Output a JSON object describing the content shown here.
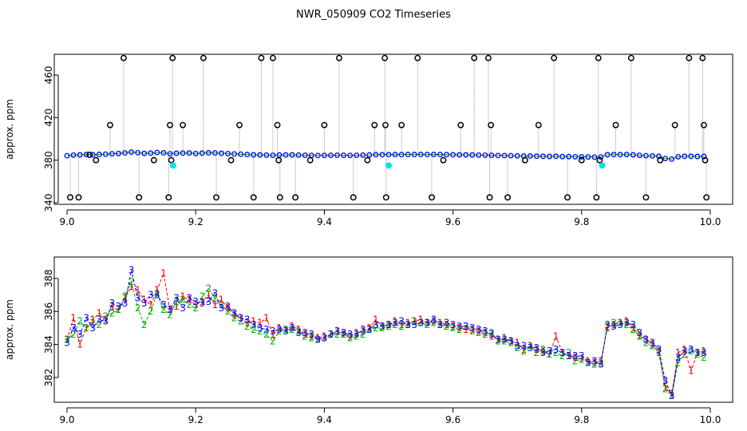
{
  "chart_data": [
    {
      "type": "scatter",
      "title": "NWR_050909  CO2 Timeseries",
      "xlabel": "",
      "ylabel": "approx. ppm",
      "xlim": [
        9.0,
        10.0
      ],
      "ylim": [
        340,
        478
      ],
      "x_ticks": [
        "9.0",
        "9.2",
        "9.4",
        "9.6",
        "9.8",
        "10.0"
      ],
      "y_ticks": [
        "340",
        "380",
        "420",
        "460"
      ],
      "series": [
        {
          "color": "#0000ff",
          "marker": "circle",
          "x": [
            9.0,
            9.01,
            9.02,
            9.03,
            9.04,
            9.05,
            9.06,
            9.07,
            9.08,
            9.09,
            9.1,
            9.11,
            9.12,
            9.13,
            9.14,
            9.15,
            9.16,
            9.17,
            9.18,
            9.19,
            9.2,
            9.21,
            9.22,
            9.23,
            9.24,
            9.25,
            9.26,
            9.27,
            9.28,
            9.29,
            9.3,
            9.31,
            9.32,
            9.33,
            9.34,
            9.35,
            9.36,
            9.37,
            9.38,
            9.39,
            9.4,
            9.41,
            9.42,
            9.43,
            9.44,
            9.45,
            9.46,
            9.47,
            9.48,
            9.49,
            9.5,
            9.51,
            9.52,
            9.53,
            9.54,
            9.55,
            9.56,
            9.57,
            9.58,
            9.59,
            9.6,
            9.61,
            9.62,
            9.63,
            9.64,
            9.65,
            9.66,
            9.67,
            9.68,
            9.69,
            9.7,
            9.71,
            9.72,
            9.73,
            9.74,
            9.75,
            9.76,
            9.77,
            9.78,
            9.79,
            9.8,
            9.81,
            9.82,
            9.83,
            9.84,
            9.85,
            9.86,
            9.87,
            9.88,
            9.89,
            9.9,
            9.91,
            9.92,
            9.93,
            9.94,
            9.95,
            9.96,
            9.97,
            9.98,
            9.99
          ],
          "y": [
            384.2,
            384.8,
            385.0,
            385.3,
            385.1,
            385.4,
            385.6,
            386.0,
            386.3,
            386.8,
            387.6,
            387.0,
            386.4,
            386.6,
            387.2,
            386.9,
            386.0,
            386.5,
            386.6,
            386.7,
            386.3,
            386.6,
            386.9,
            386.8,
            386.5,
            386.2,
            385.8,
            385.6,
            385.3,
            385.0,
            385.0,
            384.8,
            384.6,
            384.9,
            384.9,
            385.0,
            384.8,
            384.6,
            384.5,
            384.4,
            384.5,
            384.6,
            384.7,
            384.6,
            384.5,
            384.6,
            384.8,
            384.9,
            385.2,
            385.1,
            385.2,
            385.3,
            385.2,
            385.3,
            385.3,
            385.4,
            385.3,
            385.4,
            385.3,
            385.2,
            385.1,
            385.0,
            385.0,
            384.9,
            384.8,
            384.7,
            384.6,
            384.4,
            384.3,
            384.2,
            384.0,
            383.8,
            383.9,
            383.7,
            383.6,
            383.5,
            383.6,
            383.4,
            383.4,
            383.2,
            383.2,
            383.0,
            382.9,
            383.0,
            385.1,
            385.2,
            385.2,
            385.3,
            385.0,
            384.6,
            384.2,
            384.0,
            383.6,
            381.6,
            381.0,
            383.2,
            383.6,
            383.6,
            383.5,
            383.5
          ]
        },
        {
          "color": "#000000",
          "marker": "open-circle",
          "name": "",
          "x": [
            9.005,
            9.018,
            9.035,
            9.045,
            9.067,
            9.088,
            9.112,
            9.135,
            9.158,
            9.16,
            9.162,
            9.164,
            9.18,
            9.212,
            9.232,
            9.255,
            9.268,
            9.29,
            9.302,
            9.32,
            9.327,
            9.329,
            9.331,
            9.355,
            9.378,
            9.4,
            9.423,
            9.445,
            9.467,
            9.478,
            9.494,
            9.495,
            9.496,
            9.52,
            9.545,
            9.567,
            9.585,
            9.612,
            9.633,
            9.655,
            9.657,
            9.659,
            9.685,
            9.712,
            9.733,
            9.757,
            9.778,
            9.8,
            9.823,
            9.826,
            9.828,
            9.853,
            9.877,
            9.9,
            9.922,
            9.945,
            9.967,
            9.988,
            9.99,
            9.992,
            9.994
          ],
          "y": [
            345,
            345,
            385,
            380,
            413,
            476,
            345,
            380,
            345,
            413,
            380,
            476,
            413,
            476,
            345,
            380,
            413,
            345,
            476,
            476,
            413,
            380,
            345,
            345,
            380,
            413,
            476,
            345,
            380,
            413,
            476,
            413,
            345,
            413,
            476,
            345,
            380,
            413,
            476,
            476,
            345,
            413,
            345,
            380,
            413,
            476,
            345,
            380,
            345,
            476,
            380,
            413,
            476,
            345,
            380,
            413,
            476,
            476,
            413,
            380,
            345
          ]
        },
        {
          "color": "#00e5e5",
          "marker": "circle",
          "x": [
            9.165,
            9.5,
            9.832
          ],
          "y": [
            375,
            375,
            375
          ]
        }
      ]
    },
    {
      "type": "line",
      "title": "",
      "xlabel": "",
      "ylabel": "approx. ppm",
      "xlim": [
        9.0,
        10.0
      ],
      "ylim": [
        380.6,
        389.2
      ],
      "x_ticks": [
        "9.0",
        "9.2",
        "9.4",
        "9.6",
        "9.8",
        "10.0"
      ],
      "y_ticks": [
        "382",
        "384",
        "386",
        "388"
      ],
      "series": [
        {
          "label": "1",
          "color": "#ff0000",
          "x": [
            9.0,
            9.01,
            9.02,
            9.03,
            9.04,
            9.05,
            9.06,
            9.07,
            9.08,
            9.09,
            9.1,
            9.11,
            9.12,
            9.13,
            9.14,
            9.15,
            9.16,
            9.17,
            9.18,
            9.19,
            9.2,
            9.21,
            9.22,
            9.23,
            9.24,
            9.25,
            9.26,
            9.27,
            9.28,
            9.29,
            9.3,
            9.31,
            9.32,
            9.33,
            9.34,
            9.35,
            9.36,
            9.37,
            9.38,
            9.39,
            9.4,
            9.41,
            9.42,
            9.43,
            9.44,
            9.45,
            9.46,
            9.47,
            9.48,
            9.49,
            9.5,
            9.51,
            9.52,
            9.53,
            9.54,
            9.55,
            9.56,
            9.57,
            9.58,
            9.59,
            9.6,
            9.61,
            9.62,
            9.63,
            9.64,
            9.65,
            9.66,
            9.67,
            9.68,
            9.69,
            9.7,
            9.71,
            9.72,
            9.73,
            9.74,
            9.75,
            9.76,
            9.77,
            9.78,
            9.79,
            9.8,
            9.81,
            9.82,
            9.83,
            9.84,
            9.85,
            9.86,
            9.87,
            9.88,
            9.89,
            9.9,
            9.91,
            9.92,
            9.93,
            9.94,
            9.95,
            9.96,
            9.97,
            9.98,
            9.99
          ],
          "y": [
            384.3,
            385.6,
            384.0,
            385.0,
            385.5,
            385.9,
            385.5,
            386.3,
            386.1,
            386.8,
            387.5,
            387.3,
            386.7,
            386.4,
            387.3,
            388.3,
            386.1,
            386.3,
            386.9,
            386.7,
            386.4,
            386.6,
            387.0,
            386.4,
            386.7,
            386.2,
            385.8,
            385.6,
            385.3,
            385.4,
            385.3,
            385.6,
            384.6,
            385.0,
            384.9,
            385.1,
            384.9,
            384.6,
            384.5,
            384.4,
            384.5,
            384.6,
            384.8,
            384.6,
            384.5,
            384.7,
            384.8,
            385.0,
            385.5,
            385.1,
            385.2,
            385.4,
            385.2,
            385.3,
            385.4,
            385.5,
            385.3,
            385.4,
            385.3,
            385.2,
            385.1,
            385.0,
            384.9,
            384.9,
            384.8,
            384.7,
            384.5,
            384.3,
            384.4,
            384.2,
            384.1,
            383.7,
            383.9,
            383.7,
            383.6,
            383.4,
            384.5,
            383.5,
            383.3,
            383.2,
            383.1,
            383.0,
            382.9,
            383.0,
            385.0,
            385.2,
            385.3,
            385.4,
            385.0,
            384.5,
            384.3,
            384.0,
            383.5,
            381.4,
            381.0,
            383.5,
            383.7,
            382.4,
            383.5,
            383.6
          ]
        },
        {
          "label": "2",
          "color": "#00b000",
          "x": [
            9.0,
            9.01,
            9.02,
            9.03,
            9.04,
            9.05,
            9.06,
            9.07,
            9.08,
            9.09,
            9.1,
            9.11,
            9.12,
            9.13,
            9.14,
            9.15,
            9.16,
            9.17,
            9.18,
            9.19,
            9.2,
            9.21,
            9.22,
            9.23,
            9.24,
            9.25,
            9.26,
            9.27,
            9.28,
            9.29,
            9.3,
            9.31,
            9.32,
            9.33,
            9.34,
            9.35,
            9.36,
            9.37,
            9.38,
            9.39,
            9.4,
            9.41,
            9.42,
            9.43,
            9.44,
            9.45,
            9.46,
            9.47,
            9.48,
            9.49,
            9.5,
            9.51,
            9.52,
            9.53,
            9.54,
            9.55,
            9.56,
            9.57,
            9.58,
            9.59,
            9.6,
            9.61,
            9.62,
            9.63,
            9.64,
            9.65,
            9.66,
            9.67,
            9.68,
            9.69,
            9.7,
            9.71,
            9.72,
            9.73,
            9.74,
            9.75,
            9.76,
            9.77,
            9.78,
            9.79,
            9.8,
            9.81,
            9.82,
            9.83,
            9.84,
            9.85,
            9.86,
            9.87,
            9.88,
            9.89,
            9.9,
            9.91,
            9.92,
            9.93,
            9.94,
            9.95,
            9.96,
            9.97,
            9.98,
            9.99
          ],
          "y": [
            384.3,
            384.6,
            385.4,
            385.0,
            385.3,
            385.2,
            385.7,
            385.9,
            386.1,
            386.9,
            387.8,
            386.2,
            385.2,
            386.0,
            387.1,
            386.1,
            385.8,
            386.6,
            386.7,
            386.4,
            386.2,
            386.9,
            387.4,
            386.8,
            386.4,
            386.0,
            385.6,
            385.4,
            385.1,
            384.9,
            384.8,
            384.6,
            384.2,
            384.8,
            384.9,
            384.9,
            384.8,
            384.5,
            384.4,
            384.3,
            384.4,
            384.6,
            384.6,
            384.6,
            384.4,
            384.5,
            384.6,
            384.9,
            385.0,
            385.0,
            385.1,
            385.2,
            385.1,
            385.2,
            385.4,
            385.3,
            385.2,
            385.3,
            385.2,
            385.1,
            385.0,
            384.9,
            385.1,
            384.8,
            384.7,
            384.6,
            384.7,
            384.2,
            384.2,
            384.1,
            383.8,
            383.6,
            383.9,
            383.5,
            383.7,
            383.4,
            383.5,
            383.3,
            383.5,
            383.0,
            383.1,
            382.9,
            382.8,
            382.9,
            385.1,
            385.3,
            385.3,
            385.2,
            384.9,
            384.5,
            384.1,
            383.9,
            383.6,
            381.3,
            380.9,
            382.9,
            383.4,
            383.6,
            383.4,
            383.2
          ]
        },
        {
          "label": "3",
          "color": "#0000ff",
          "x": [
            9.0,
            9.01,
            9.02,
            9.03,
            9.04,
            9.05,
            9.06,
            9.07,
            9.08,
            9.09,
            9.1,
            9.11,
            9.12,
            9.13,
            9.14,
            9.15,
            9.16,
            9.17,
            9.18,
            9.19,
            9.2,
            9.21,
            9.22,
            9.23,
            9.24,
            9.25,
            9.26,
            9.27,
            9.28,
            9.29,
            9.3,
            9.31,
            9.32,
            9.33,
            9.34,
            9.35,
            9.36,
            9.37,
            9.38,
            9.39,
            9.4,
            9.41,
            9.42,
            9.43,
            9.44,
            9.45,
            9.46,
            9.47,
            9.48,
            9.49,
            9.5,
            9.51,
            9.52,
            9.53,
            9.54,
            9.55,
            9.56,
            9.57,
            9.58,
            9.59,
            9.6,
            9.61,
            9.62,
            9.63,
            9.64,
            9.65,
            9.66,
            9.67,
            9.68,
            9.69,
            9.7,
            9.71,
            9.72,
            9.73,
            9.74,
            9.75,
            9.76,
            9.77,
            9.78,
            9.79,
            9.8,
            9.81,
            9.82,
            9.83,
            9.84,
            9.85,
            9.86,
            9.87,
            9.88,
            9.89,
            9.9,
            9.91,
            9.92,
            9.93,
            9.94,
            9.95,
            9.96,
            9.97,
            9.98,
            9.99
          ],
          "y": [
            384.1,
            385.0,
            384.6,
            385.6,
            385.0,
            385.5,
            385.4,
            386.5,
            386.3,
            386.5,
            388.5,
            386.8,
            386.5,
            387.0,
            387.0,
            386.4,
            386.1,
            386.8,
            386.2,
            386.8,
            386.6,
            386.5,
            386.6,
            387.1,
            386.2,
            386.3,
            385.9,
            385.6,
            385.5,
            385.2,
            385.0,
            384.9,
            384.8,
            384.9,
            384.8,
            385.0,
            384.7,
            384.7,
            384.6,
            384.3,
            384.4,
            384.6,
            384.8,
            384.7,
            384.6,
            384.6,
            384.9,
            384.9,
            385.2,
            385.1,
            385.2,
            385.3,
            385.4,
            385.2,
            385.2,
            385.3,
            385.3,
            385.5,
            385.2,
            385.3,
            385.2,
            385.1,
            385.1,
            385.0,
            384.9,
            384.8,
            384.6,
            384.3,
            384.3,
            384.2,
            383.9,
            383.9,
            383.8,
            383.8,
            383.5,
            383.6,
            383.7,
            383.5,
            383.3,
            383.3,
            383.3,
            382.9,
            383.0,
            382.8,
            385.2,
            385.1,
            385.2,
            385.3,
            385.2,
            384.7,
            384.3,
            384.1,
            383.7,
            381.8,
            380.9,
            383.2,
            383.6,
            383.7,
            383.5,
            383.5
          ]
        }
      ]
    }
  ]
}
